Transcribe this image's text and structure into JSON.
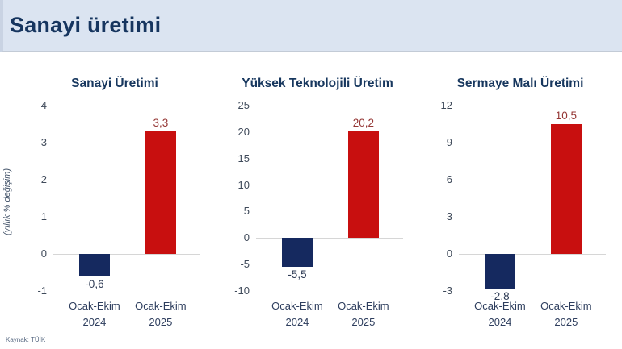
{
  "header": {
    "title": "Sanayi üretimi"
  },
  "figure": {
    "y_axis_label": "(yıllık % değişim)"
  },
  "footer": {
    "source": "Kaynak: TÜİK"
  },
  "colors": {
    "header_bg": "#dbe4f1",
    "title_text": "#16355f",
    "chart_title_text": "#17375e",
    "bar_2024_navy": "#15295f",
    "bar_2025_red": "#c80f0f",
    "negative_value_label": "#2e3b55",
    "positive_value_label": "#953735",
    "tick_text": "#3f4a5a",
    "zero_line": "#d6d6d6"
  },
  "chart_data": [
    {
      "type": "bar",
      "title": "Sanayi Üretimi",
      "categories": [
        [
          "Ocak-Ekim",
          "2024"
        ],
        [
          "Ocak-Ekim",
          "2025"
        ]
      ],
      "values": [
        -0.6,
        3.3
      ],
      "value_labels": [
        "-0,6",
        "3,3"
      ],
      "bar_colors": [
        "#15295f",
        "#c80f0f"
      ],
      "label_colors": [
        "#2e3b55",
        "#953735"
      ],
      "ylim": [
        -1,
        4
      ],
      "yticks": [
        4,
        3,
        2,
        1,
        0,
        -1
      ],
      "ylabel": "(yıllık % değişim)",
      "xlabel": "",
      "grid": false,
      "zero_line": true,
      "legend": "none"
    },
    {
      "type": "bar",
      "title": "Yüksek Teknolojili Üretim",
      "categories": [
        [
          "Ocak-Ekim",
          "2024"
        ],
        [
          "Ocak-Ekim",
          "2025"
        ]
      ],
      "values": [
        -5.5,
        20.2
      ],
      "value_labels": [
        "-5,5",
        "20,2"
      ],
      "bar_colors": [
        "#15295f",
        "#c80f0f"
      ],
      "label_colors": [
        "#2e3b55",
        "#953735"
      ],
      "ylim": [
        -10,
        25
      ],
      "yticks": [
        25,
        20,
        15,
        10,
        5,
        0,
        -5,
        -10
      ],
      "ylabel": "",
      "xlabel": "",
      "grid": false,
      "zero_line": true,
      "legend": "none"
    },
    {
      "type": "bar",
      "title": "Sermaye Malı Üretimi",
      "categories": [
        [
          "Ocak-Ekim",
          "2024"
        ],
        [
          "Ocak-Ekim",
          "2025"
        ]
      ],
      "values": [
        -2.8,
        10.5
      ],
      "value_labels": [
        "-2,8",
        "10,5"
      ],
      "bar_colors": [
        "#15295f",
        "#c80f0f"
      ],
      "label_colors": [
        "#2e3b55",
        "#953735"
      ],
      "ylim": [
        -3,
        12
      ],
      "yticks": [
        12,
        9,
        6,
        3,
        0,
        -3
      ],
      "ylabel": "",
      "xlabel": "",
      "grid": false,
      "zero_line": true,
      "legend": "none"
    }
  ]
}
